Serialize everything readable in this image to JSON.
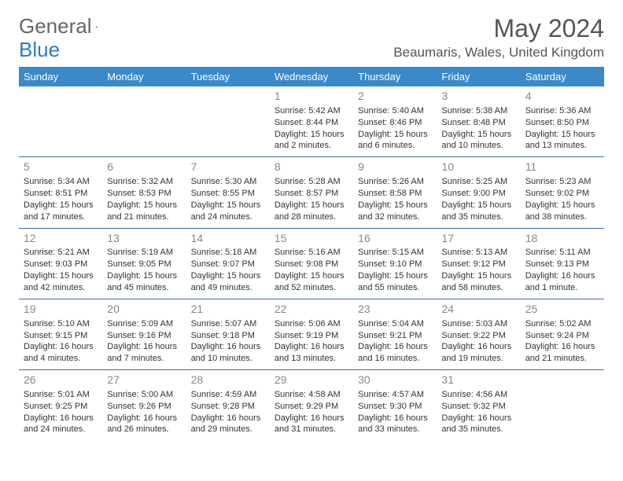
{
  "logo": {
    "part1": "General",
    "part2": "Blue"
  },
  "title": "May 2024",
  "location": "Beaumaris, Wales, United Kingdom",
  "colors": {
    "header_bg": "#3a89c9",
    "header_text": "#ffffff",
    "row_border": "#3a6ea5",
    "daynum_color": "#888888",
    "body_text": "#333333",
    "logo_gray": "#666666",
    "logo_blue": "#2d7cc1",
    "page_bg": "#ffffff"
  },
  "typography": {
    "month_title_fontsize": 32,
    "location_fontsize": 17,
    "weekday_fontsize": 13,
    "daynum_fontsize": 14,
    "cell_fontsize": 11
  },
  "weekdays": [
    "Sunday",
    "Monday",
    "Tuesday",
    "Wednesday",
    "Thursday",
    "Friday",
    "Saturday"
  ],
  "weeks": [
    [
      null,
      null,
      null,
      {
        "n": "1",
        "sr": "5:42 AM",
        "ss": "8:44 PM",
        "dl": "15 hours and 2 minutes."
      },
      {
        "n": "2",
        "sr": "5:40 AM",
        "ss": "8:46 PM",
        "dl": "15 hours and 6 minutes."
      },
      {
        "n": "3",
        "sr": "5:38 AM",
        "ss": "8:48 PM",
        "dl": "15 hours and 10 minutes."
      },
      {
        "n": "4",
        "sr": "5:36 AM",
        "ss": "8:50 PM",
        "dl": "15 hours and 13 minutes."
      }
    ],
    [
      {
        "n": "5",
        "sr": "5:34 AM",
        "ss": "8:51 PM",
        "dl": "15 hours and 17 minutes."
      },
      {
        "n": "6",
        "sr": "5:32 AM",
        "ss": "8:53 PM",
        "dl": "15 hours and 21 minutes."
      },
      {
        "n": "7",
        "sr": "5:30 AM",
        "ss": "8:55 PM",
        "dl": "15 hours and 24 minutes."
      },
      {
        "n": "8",
        "sr": "5:28 AM",
        "ss": "8:57 PM",
        "dl": "15 hours and 28 minutes."
      },
      {
        "n": "9",
        "sr": "5:26 AM",
        "ss": "8:58 PM",
        "dl": "15 hours and 32 minutes."
      },
      {
        "n": "10",
        "sr": "5:25 AM",
        "ss": "9:00 PM",
        "dl": "15 hours and 35 minutes."
      },
      {
        "n": "11",
        "sr": "5:23 AM",
        "ss": "9:02 PM",
        "dl": "15 hours and 38 minutes."
      }
    ],
    [
      {
        "n": "12",
        "sr": "5:21 AM",
        "ss": "9:03 PM",
        "dl": "15 hours and 42 minutes."
      },
      {
        "n": "13",
        "sr": "5:19 AM",
        "ss": "9:05 PM",
        "dl": "15 hours and 45 minutes."
      },
      {
        "n": "14",
        "sr": "5:18 AM",
        "ss": "9:07 PM",
        "dl": "15 hours and 49 minutes."
      },
      {
        "n": "15",
        "sr": "5:16 AM",
        "ss": "9:08 PM",
        "dl": "15 hours and 52 minutes."
      },
      {
        "n": "16",
        "sr": "5:15 AM",
        "ss": "9:10 PM",
        "dl": "15 hours and 55 minutes."
      },
      {
        "n": "17",
        "sr": "5:13 AM",
        "ss": "9:12 PM",
        "dl": "15 hours and 58 minutes."
      },
      {
        "n": "18",
        "sr": "5:11 AM",
        "ss": "9:13 PM",
        "dl": "16 hours and 1 minute."
      }
    ],
    [
      {
        "n": "19",
        "sr": "5:10 AM",
        "ss": "9:15 PM",
        "dl": "16 hours and 4 minutes."
      },
      {
        "n": "20",
        "sr": "5:09 AM",
        "ss": "9:16 PM",
        "dl": "16 hours and 7 minutes."
      },
      {
        "n": "21",
        "sr": "5:07 AM",
        "ss": "9:18 PM",
        "dl": "16 hours and 10 minutes."
      },
      {
        "n": "22",
        "sr": "5:06 AM",
        "ss": "9:19 PM",
        "dl": "16 hours and 13 minutes."
      },
      {
        "n": "23",
        "sr": "5:04 AM",
        "ss": "9:21 PM",
        "dl": "16 hours and 16 minutes."
      },
      {
        "n": "24",
        "sr": "5:03 AM",
        "ss": "9:22 PM",
        "dl": "16 hours and 19 minutes."
      },
      {
        "n": "25",
        "sr": "5:02 AM",
        "ss": "9:24 PM",
        "dl": "16 hours and 21 minutes."
      }
    ],
    [
      {
        "n": "26",
        "sr": "5:01 AM",
        "ss": "9:25 PM",
        "dl": "16 hours and 24 minutes."
      },
      {
        "n": "27",
        "sr": "5:00 AM",
        "ss": "9:26 PM",
        "dl": "16 hours and 26 minutes."
      },
      {
        "n": "28",
        "sr": "4:59 AM",
        "ss": "9:28 PM",
        "dl": "16 hours and 29 minutes."
      },
      {
        "n": "29",
        "sr": "4:58 AM",
        "ss": "9:29 PM",
        "dl": "16 hours and 31 minutes."
      },
      {
        "n": "30",
        "sr": "4:57 AM",
        "ss": "9:30 PM",
        "dl": "16 hours and 33 minutes."
      },
      {
        "n": "31",
        "sr": "4:56 AM",
        "ss": "9:32 PM",
        "dl": "16 hours and 35 minutes."
      },
      null
    ]
  ],
  "labels": {
    "sunrise": "Sunrise: ",
    "sunset": "Sunset: ",
    "daylight": "Daylight: "
  }
}
